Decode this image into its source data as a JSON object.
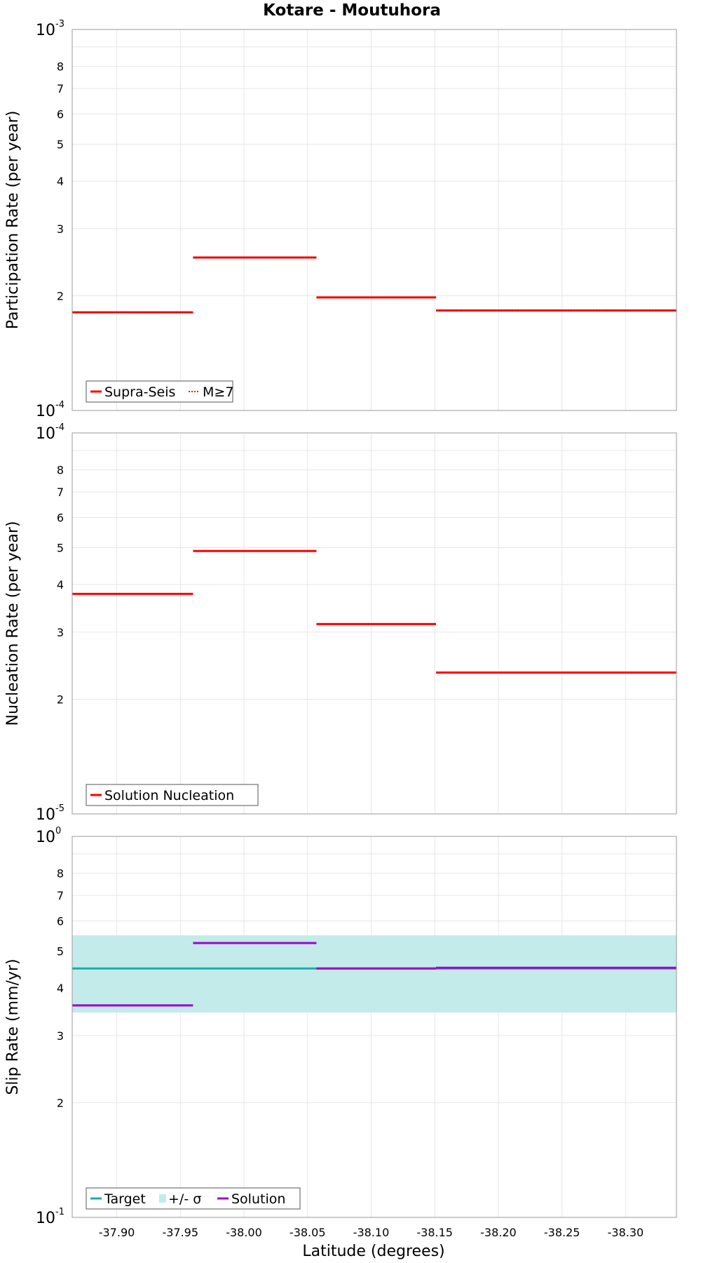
{
  "chart_data": {
    "title": "Kotare - Moutuhora",
    "xlabel": "Latitude (degrees)",
    "xlim": [
      -37.865,
      -38.34
    ],
    "xticks": [
      "-37.90",
      "-37.95",
      "-38.00",
      "-38.05",
      "-38.10",
      "-38.15",
      "-38.20",
      "-38.25",
      "-38.30"
    ],
    "xtick_values": [
      -37.9,
      -37.95,
      -38.0,
      -38.05,
      -38.1,
      -38.15,
      -38.2,
      -38.25,
      -38.3
    ],
    "colors": {
      "red": "#ff0000",
      "teal": "#1aada8",
      "band": "#c3ebea",
      "purple": "#a000d0"
    },
    "panels": [
      {
        "type": "line",
        "ylabel": "Participation Rate (per year)",
        "yscale": "log",
        "ylim": [
          0.0001,
          0.001
        ],
        "ymin_label": {
          "base": "10",
          "exp": "-4"
        },
        "ymax_label": {
          "base": "10",
          "exp": "-3"
        },
        "minor_ticks": [
          "2",
          "3",
          "4",
          "5",
          "6",
          "7",
          "8"
        ],
        "legend": [
          {
            "label": "Supra-Seis",
            "style": "solid",
            "color": "#ff0000"
          },
          {
            "label": "M≥7",
            "style": "dotted",
            "color": "#ff0000"
          }
        ],
        "series": [
          {
            "name": "Supra-Seis",
            "style": "solid",
            "color": "#ff0000",
            "segments": [
              [
                -37.865,
                -37.96,
                0.000181
              ],
              [
                -37.96,
                -38.057,
                0.000252
              ],
              [
                -38.057,
                -38.151,
                0.000198
              ],
              [
                -38.151,
                -38.34,
                0.000183
              ]
            ]
          },
          {
            "name": "M≥7",
            "style": "dotted",
            "color": "#ff0000",
            "segments": [
              [
                -37.865,
                -37.96,
                0.000181
              ],
              [
                -37.96,
                -38.057,
                0.000252
              ],
              [
                -38.057,
                -38.151,
                0.000198
              ],
              [
                -38.151,
                -38.34,
                0.000183
              ]
            ]
          }
        ]
      },
      {
        "type": "line",
        "ylabel": "Nucleation Rate (per year)",
        "yscale": "log",
        "ylim": [
          1e-05,
          0.0001
        ],
        "ymin_label": {
          "base": "10",
          "exp": "-5"
        },
        "ymax_label": {
          "base": "10",
          "exp": "-4"
        },
        "minor_ticks": [
          "2",
          "3",
          "4",
          "5",
          "6",
          "7",
          "8"
        ],
        "legend": [
          {
            "label": "Solution Nucleation",
            "style": "solid",
            "color": "#ff0000"
          }
        ],
        "series": [
          {
            "name": "Solution Nucleation",
            "style": "solid",
            "color": "#ff0000",
            "segments": [
              [
                -37.865,
                -37.96,
                3.78e-05
              ],
              [
                -37.96,
                -38.057,
                4.9e-05
              ],
              [
                -38.057,
                -38.151,
                3.15e-05
              ],
              [
                -38.151,
                -38.34,
                2.35e-05
              ]
            ]
          }
        ]
      },
      {
        "type": "line",
        "ylabel": "Slip Rate (mm/yr)",
        "yscale": "log",
        "ylim": [
          0.1,
          1.0
        ],
        "ymin_label": {
          "base": "10",
          "exp": "-1"
        },
        "ymax_label": {
          "base": "10",
          "exp": "0"
        },
        "minor_ticks": [
          "2",
          "3",
          "4",
          "5",
          "6",
          "7",
          "8"
        ],
        "legend": [
          {
            "label": "Target",
            "style": "solid",
            "color": "#1aada8"
          },
          {
            "label": "+/- σ",
            "style": "band",
            "color": "#c3ebea"
          },
          {
            "label": "Solution",
            "style": "solid",
            "color": "#a000d0"
          }
        ],
        "band": {
          "x0": -37.865,
          "x1": -38.34,
          "lower": 0.345,
          "upper": 0.55
        },
        "series": [
          {
            "name": "Target",
            "style": "solid",
            "color": "#1aada8",
            "segments": [
              [
                -37.865,
                -38.34,
                0.45
              ]
            ]
          },
          {
            "name": "Solution",
            "style": "solid",
            "color": "#a000d0",
            "segments": [
              [
                -37.865,
                -37.96,
                0.36
              ],
              [
                -37.96,
                -38.057,
                0.525
              ],
              [
                -38.057,
                -38.151,
                0.45
              ],
              [
                -38.151,
                -38.34,
                0.452
              ]
            ]
          }
        ]
      }
    ]
  }
}
